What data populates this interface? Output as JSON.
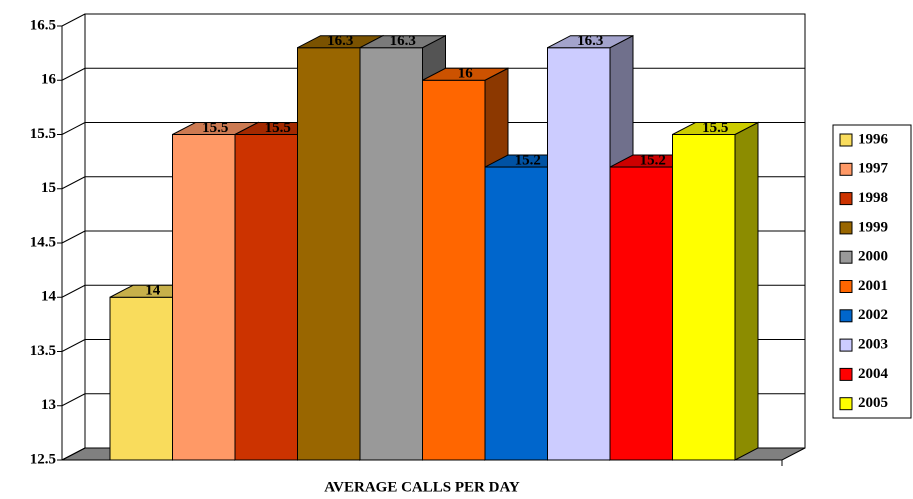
{
  "chart_data": {
    "type": "bar",
    "categories": [
      "AVERAGE CALLS PER DAY"
    ],
    "series": [
      {
        "name": "1996",
        "color": "#F9DC5C",
        "values": [
          14
        ]
      },
      {
        "name": "1997",
        "color": "#FF9966",
        "values": [
          15.5
        ]
      },
      {
        "name": "1998",
        "color": "#CC3300",
        "values": [
          15.5
        ]
      },
      {
        "name": "1999",
        "color": "#996600",
        "values": [
          16.3
        ]
      },
      {
        "name": "2000",
        "color": "#999999",
        "values": [
          16.3
        ]
      },
      {
        "name": "2001",
        "color": "#FF6600",
        "values": [
          16
        ]
      },
      {
        "name": "2002",
        "color": "#0066CC",
        "values": [
          15.2
        ]
      },
      {
        "name": "2003",
        "color": "#CCCCFF",
        "values": [
          16.3
        ]
      },
      {
        "name": "2004",
        "color": "#FF0000",
        "values": [
          15.2
        ]
      },
      {
        "name": "2005",
        "color": "#FFFF00",
        "values": [
          15.5
        ]
      }
    ],
    "ylim": [
      12.5,
      16.5
    ],
    "yticks": [
      12.5,
      13,
      13.5,
      14,
      14.5,
      15,
      15.5,
      16,
      16.5
    ],
    "grid": true,
    "legend": "right"
  }
}
